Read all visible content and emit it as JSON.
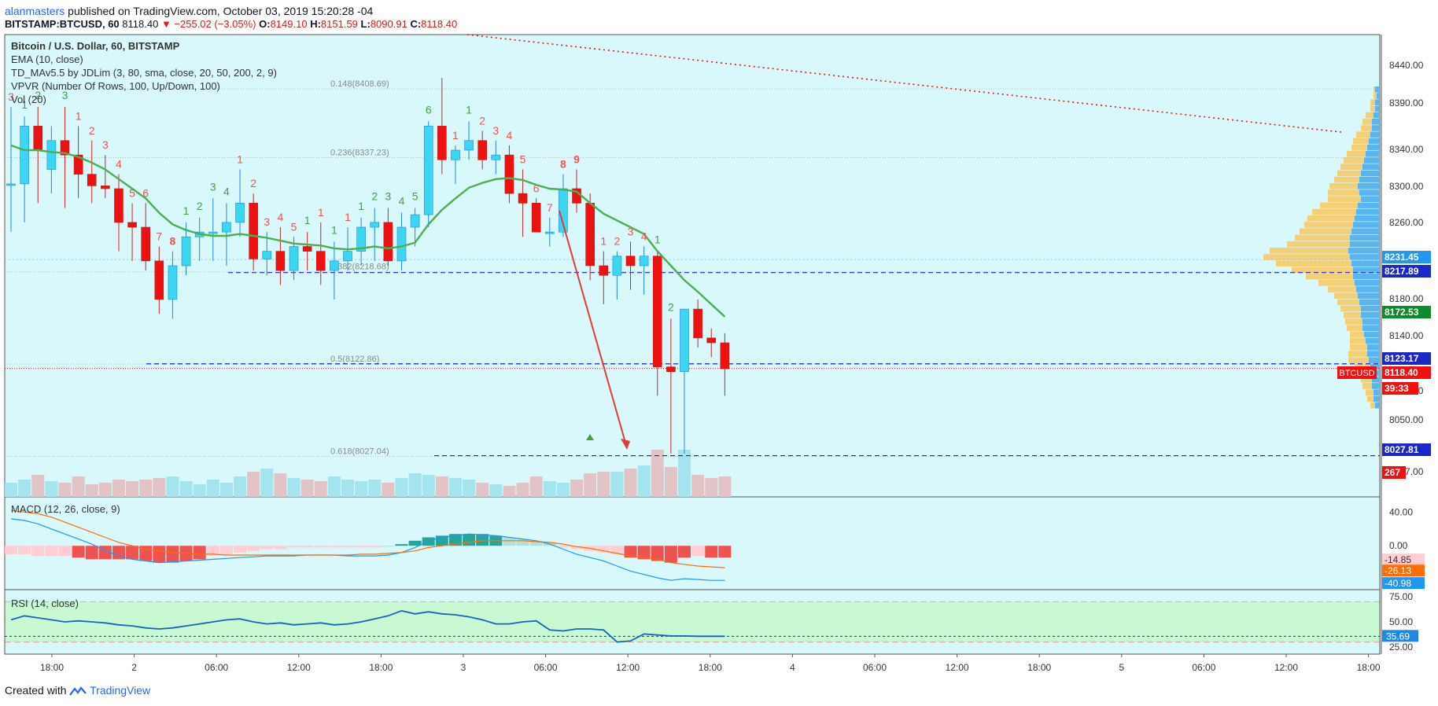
{
  "header": {
    "author": "alanmasters",
    "published": "published on TradingView.com, October 03, 2019 15:20:28 -04",
    "symbol": "BITSTAMP:BTCUSD, 60",
    "last": "8118.40",
    "change": "▼ −255.02 (−3.05%)",
    "o_label": "O:",
    "o": "8149.10",
    "h_label": "H:",
    "h": "8151.59",
    "l_label": "L:",
    "l": "8090.91",
    "c_label": "C:",
    "c": "8118.40"
  },
  "legend": [
    "Bitcoin / U.S. Dollar, 60, BITSTAMP",
    "EMA (10, close)",
    "TD_MAv5.5 by JDLim (3, 80, sma, close, 20, 50, 200, 2, 9)",
    "VPVR (Number Of Rows, 100, Up/Down, 100)",
    "Vol (20)"
  ],
  "macd_title": "MACD (12, 26, close, 9)",
  "rsi_title": "RSI (14, close)",
  "footer": {
    "created": "Created with",
    "brand": "TradingView"
  },
  "colors": {
    "bg": "#d8f8fb",
    "up": "#3cd6f2",
    "down": "#ee1111",
    "ema": "#4caf50",
    "td_up": "#43a047",
    "td_down": "#ef5350",
    "fib": "#2424c8",
    "vol_up": "#a4e4ef",
    "vol_down": "#e2c4c6",
    "rsi_band": "#c9f9d3"
  },
  "chart_data": [
    {
      "type": "candlestick",
      "title": "Bitcoin / U.S. Dollar, 60, BITSTAMP",
      "x_tick_labels": [
        "18:00",
        "2",
        "06:00",
        "12:00",
        "18:00",
        "3",
        "06:00",
        "12:00",
        "18:00",
        "4",
        "06:00",
        "12:00",
        "18:00",
        "5",
        "06:00",
        "12:00",
        "18:00"
      ],
      "y_tick_labels": [
        "8440.00",
        "8390.00",
        "8340.00",
        "8300.00",
        "8260.00",
        "8180.00",
        "8140.00",
        "8080.00",
        "8050.00",
        "7997.00"
      ],
      "ylim": [
        7985,
        8465
      ],
      "ohlc": [
        [
          8310,
          8390,
          8260,
          8310
        ],
        [
          8310,
          8380,
          8270,
          8370
        ],
        [
          8370,
          8390,
          8290,
          8345
        ],
        [
          8325,
          8370,
          8300,
          8355
        ],
        [
          8355,
          8390,
          8285,
          8340
        ],
        [
          8340,
          8370,
          8295,
          8320
        ],
        [
          8320,
          8355,
          8290,
          8308
        ],
        [
          8308,
          8340,
          8295,
          8305
        ],
        [
          8305,
          8320,
          8240,
          8270
        ],
        [
          8270,
          8290,
          8230,
          8265
        ],
        [
          8265,
          8290,
          8220,
          8230
        ],
        [
          8230,
          8245,
          8175,
          8190
        ],
        [
          8190,
          8240,
          8170,
          8225
        ],
        [
          8225,
          8270,
          8215,
          8255
        ],
        [
          8255,
          8275,
          8230,
          8260
        ],
        [
          8260,
          8295,
          8230,
          8260
        ],
        [
          8260,
          8290,
          8225,
          8270
        ],
        [
          8270,
          8325,
          8255,
          8290
        ],
        [
          8290,
          8300,
          8220,
          8232
        ],
        [
          8232,
          8260,
          8215,
          8240
        ],
        [
          8240,
          8265,
          8205,
          8220
        ],
        [
          8220,
          8255,
          8210,
          8245
        ],
        [
          8245,
          8260,
          8220,
          8240
        ],
        [
          8240,
          8270,
          8205,
          8220
        ],
        [
          8220,
          8250,
          8190,
          8230
        ],
        [
          8230,
          8265,
          8220,
          8240
        ],
        [
          8240,
          8275,
          8225,
          8265
        ],
        [
          8265,
          8285,
          8230,
          8270
        ],
        [
          8270,
          8285,
          8225,
          8230
        ],
        [
          8230,
          8280,
          8220,
          8265
        ],
        [
          8265,
          8285,
          8245,
          8278
        ],
        [
          8278,
          8375,
          8265,
          8370
        ],
        [
          8370,
          8420,
          8320,
          8335
        ],
        [
          8335,
          8350,
          8310,
          8345
        ],
        [
          8345,
          8375,
          8335,
          8355
        ],
        [
          8355,
          8365,
          8325,
          8335
        ],
        [
          8335,
          8355,
          8320,
          8340
        ],
        [
          8340,
          8350,
          8290,
          8300
        ],
        [
          8300,
          8325,
          8255,
          8290
        ],
        [
          8290,
          8295,
          8260,
          8260
        ],
        [
          8260,
          8275,
          8245,
          8260
        ],
        [
          8260,
          8320,
          8255,
          8305
        ],
        [
          8305,
          8325,
          8280,
          8290
        ],
        [
          8290,
          8300,
          8210,
          8225
        ],
        [
          8225,
          8240,
          8185,
          8215
        ],
        [
          8215,
          8240,
          8190,
          8235
        ],
        [
          8235,
          8250,
          8200,
          8225
        ],
        [
          8225,
          8245,
          8195,
          8235
        ],
        [
          8235,
          8240,
          8090,
          8120
        ],
        [
          8120,
          8170,
          8030,
          8115
        ],
        [
          8115,
          8180,
          8030,
          8180
        ],
        [
          8180,
          8190,
          8140,
          8150
        ],
        [
          8150,
          8160,
          8130,
          8145
        ],
        [
          8145,
          8155,
          8090,
          8118
        ]
      ],
      "ema": [
        8350,
        8345,
        8345,
        8343,
        8342,
        8338,
        8332,
        8325,
        8315,
        8305,
        8295,
        8280,
        8268,
        8262,
        8258,
        8256,
        8256,
        8258,
        8256,
        8254,
        8251,
        8248,
        8247,
        8246,
        8243,
        8242,
        8243,
        8245,
        8243,
        8245,
        8249,
        8268,
        8283,
        8295,
        8306,
        8311,
        8315,
        8316,
        8314,
        8309,
        8305,
        8304,
        8302,
        8290,
        8279,
        8272,
        8265,
        8258,
        8240,
        8225,
        8210,
        8198,
        8185,
        8172
      ],
      "td_counts": [
        {
          "i": 0,
          "label": "3",
          "dir": "down"
        },
        {
          "i": 1,
          "label": "1",
          "dir": "up"
        },
        {
          "i": 2,
          "label": "2",
          "dir": "up"
        },
        {
          "i": 4,
          "label": "3",
          "dir": "up"
        },
        {
          "i": 5,
          "label": "1",
          "dir": "down"
        },
        {
          "i": 6,
          "label": "2",
          "dir": "down"
        },
        {
          "i": 7,
          "label": "3",
          "dir": "down"
        },
        {
          "i": 8,
          "label": "4",
          "dir": "down"
        },
        {
          "i": 9,
          "label": "5",
          "dir": "down"
        },
        {
          "i": 10,
          "label": "6",
          "dir": "down"
        },
        {
          "i": 11,
          "label": "7",
          "dir": "down"
        },
        {
          "i": 12,
          "label": "8",
          "dir": "down",
          "bold": true
        },
        {
          "i": 13,
          "label": "1",
          "dir": "up"
        },
        {
          "i": 14,
          "label": "2",
          "dir": "up"
        },
        {
          "i": 15,
          "label": "3",
          "dir": "up"
        },
        {
          "i": 16,
          "label": "4",
          "dir": "up"
        },
        {
          "i": 17,
          "label": "1",
          "dir": "down"
        },
        {
          "i": 18,
          "label": "2",
          "dir": "down"
        },
        {
          "i": 19,
          "label": "3",
          "dir": "down"
        },
        {
          "i": 20,
          "label": "4",
          "dir": "down"
        },
        {
          "i": 21,
          "label": "5",
          "dir": "down"
        },
        {
          "i": 22,
          "label": "1",
          "dir": "up"
        },
        {
          "i": 23,
          "label": "1",
          "dir": "down"
        },
        {
          "i": 24,
          "label": "1",
          "dir": "up"
        },
        {
          "i": 25,
          "label": "1",
          "dir": "down"
        },
        {
          "i": 26,
          "label": "1",
          "dir": "up"
        },
        {
          "i": 27,
          "label": "2",
          "dir": "up"
        },
        {
          "i": 28,
          "label": "3",
          "dir": "up"
        },
        {
          "i": 29,
          "label": "4",
          "dir": "up"
        },
        {
          "i": 30,
          "label": "5",
          "dir": "up"
        },
        {
          "i": 31,
          "label": "6",
          "dir": "up"
        },
        {
          "i": 33,
          "label": "1",
          "dir": "down"
        },
        {
          "i": 34,
          "label": "1",
          "dir": "up"
        },
        {
          "i": 35,
          "label": "2",
          "dir": "down"
        },
        {
          "i": 36,
          "label": "3",
          "dir": "down"
        },
        {
          "i": 37,
          "label": "4",
          "dir": "down"
        },
        {
          "i": 38,
          "label": "5",
          "dir": "down"
        },
        {
          "i": 39,
          "label": "6",
          "dir": "down"
        },
        {
          "i": 40,
          "label": "7",
          "dir": "down"
        },
        {
          "i": 41,
          "label": "8",
          "dir": "down",
          "bold": true
        },
        {
          "i": 42,
          "label": "9",
          "dir": "down",
          "bold": true
        },
        {
          "i": 44,
          "label": "1",
          "dir": "down"
        },
        {
          "i": 45,
          "label": "2",
          "dir": "down"
        },
        {
          "i": 46,
          "label": "3",
          "dir": "down"
        },
        {
          "i": 47,
          "label": "4",
          "dir": "down"
        },
        {
          "i": 48,
          "label": "1",
          "dir": "up"
        },
        {
          "i": 49,
          "label": "2",
          "dir": "up"
        }
      ],
      "fib_levels": [
        {
          "label": "0.148(8408.69)",
          "value": 8408.69
        },
        {
          "label": "0.236(8337.23)",
          "value": 8337.23
        },
        {
          "label": "0.382(8218.68)",
          "value": 8218.68
        },
        {
          "label": "0.5(8122.86)",
          "value": 8122.86
        },
        {
          "label": "0.618(8027.04)",
          "value": 8027.04
        }
      ],
      "horizontal_lines": [
        8217.89,
        8123.17,
        8027.81
      ],
      "price_labels": [
        {
          "text": "8231.45",
          "color": "#2196f3"
        },
        {
          "text": "8217.89",
          "color": "#1a28c8"
        },
        {
          "text": "8172.53",
          "color": "#0d8a2c"
        },
        {
          "text": "8123.17",
          "color": "#1a28c8"
        },
        {
          "text": "BTCUSD",
          "color": "#ee1111"
        },
        {
          "text": "8118.40",
          "color": "#ee1111"
        },
        {
          "text": "39:33",
          "color": "#ee1111"
        },
        {
          "text": "8027.81",
          "color": "#1a28c8"
        },
        {
          "text": "267",
          "color": "#ee1111"
        }
      ],
      "volume": [
        18,
        22,
        28,
        20,
        18,
        26,
        16,
        18,
        22,
        20,
        22,
        24,
        26,
        20,
        16,
        22,
        18,
        26,
        32,
        36,
        30,
        24,
        22,
        20,
        26,
        22,
        20,
        22,
        18,
        24,
        30,
        28,
        26,
        24,
        22,
        18,
        16,
        14,
        18,
        26,
        20,
        18,
        22,
        30,
        32,
        32,
        36,
        40,
        60,
        38,
        60,
        28,
        24,
        26
      ],
      "vpvr_up": [
        6,
        4,
        6,
        6,
        8,
        10,
        10,
        12,
        14,
        16,
        18,
        20,
        22,
        24,
        26,
        28,
        26,
        24,
        28,
        30,
        32,
        34,
        36,
        38,
        38,
        40,
        38,
        36,
        34,
        34,
        32,
        30,
        28,
        26,
        24,
        24,
        22,
        22,
        20,
        18,
        16,
        16,
        14,
        12,
        12,
        10,
        10,
        8,
        8,
        6
      ],
      "vpvr_down": [
        2,
        4,
        6,
        6,
        10,
        12,
        14,
        18,
        20,
        20,
        24,
        26,
        28,
        30,
        32,
        36,
        40,
        42,
        48,
        56,
        60,
        62,
        66,
        70,
        80,
        100,
        110,
        96,
        78,
        60,
        46,
        36,
        30,
        28,
        26,
        22,
        22,
        20,
        18,
        20,
        22,
        24,
        26,
        20,
        16,
        14,
        12,
        10,
        8,
        6
      ]
    },
    {
      "type": "bar",
      "title": "MACD (12, 26, close, 9)",
      "y_tick_labels": [
        "40.00",
        "0.00",
        "-14.85",
        "-26.13",
        "-40.98"
      ],
      "ylim": [
        -52,
        58
      ],
      "histogram": [
        -10,
        -10,
        -12,
        -12,
        -12,
        -14,
        -16,
        -16,
        -16,
        -16,
        -18,
        -20,
        -20,
        -18,
        -16,
        -12,
        -10,
        -8,
        -6,
        -4,
        -4,
        -2,
        -2,
        -2,
        -2,
        -2,
        -2,
        -2,
        0,
        2,
        6,
        10,
        12,
        14,
        14,
        14,
        12,
        10,
        8,
        6,
        4,
        -2,
        -4,
        -6,
        -8,
        -10,
        -14,
        -16,
        -18,
        -20,
        -14,
        -12,
        -14,
        -14
      ],
      "macd": [
        32,
        30,
        26,
        20,
        14,
        8,
        2,
        -6,
        -12,
        -16,
        -18,
        -20,
        -19,
        -18,
        -17,
        -16,
        -15,
        -14,
        -13,
        -12,
        -12,
        -12,
        -11,
        -11,
        -11,
        -12,
        -12,
        -12,
        -11,
        -8,
        -2,
        6,
        10,
        12,
        14,
        13,
        12,
        10,
        8,
        6,
        2,
        -4,
        -10,
        -14,
        -18,
        -24,
        -30,
        -34,
        -38,
        -41,
        -39,
        -40,
        -41,
        -41
      ],
      "signal": [
        42,
        40,
        38,
        34,
        28,
        22,
        16,
        10,
        4,
        0,
        -4,
        -6,
        -8,
        -9,
        -10,
        -10,
        -11,
        -11,
        -11,
        -11,
        -11,
        -11,
        -11,
        -11,
        -11,
        -11,
        -10,
        -10,
        -9,
        -8,
        -6,
        -2,
        0,
        2,
        4,
        6,
        6,
        6,
        6,
        5,
        4,
        2,
        -1,
        -3,
        -6,
        -9,
        -12,
        -14,
        -16,
        -20,
        -22,
        -24,
        -25,
        -26
      ]
    },
    {
      "type": "line",
      "title": "RSI (14, close)",
      "y_tick_labels": [
        "75.00",
        "50.00",
        "35.69",
        "25.00"
      ],
      "ylim": [
        18,
        82
      ],
      "band": [
        30,
        70
      ],
      "values": [
        52,
        56,
        54,
        52,
        50,
        51,
        50,
        49,
        47,
        46,
        44,
        43,
        44,
        46,
        48,
        50,
        52,
        53,
        50,
        48,
        49,
        47,
        48,
        49,
        47,
        48,
        50,
        53,
        56,
        61,
        58,
        60,
        58,
        57,
        55,
        52,
        48,
        48,
        50,
        51,
        42,
        41,
        43,
        43,
        42,
        30,
        31,
        38,
        37,
        36,
        36,
        35.69,
        35.69,
        35.69
      ]
    }
  ]
}
